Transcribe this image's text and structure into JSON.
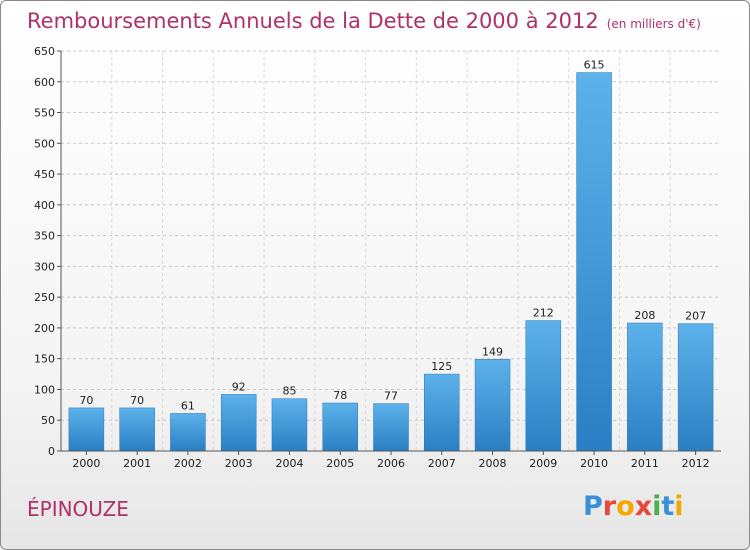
{
  "chart_data": {
    "type": "bar",
    "title": "Remboursements Annuels de la Dette de 2000 à 2012",
    "unit": "(en milliers d'€)",
    "categories": [
      "2000",
      "2001",
      "2002",
      "2003",
      "2004",
      "2005",
      "2006",
      "2007",
      "2008",
      "2009",
      "2010",
      "2011",
      "2012"
    ],
    "values": [
      70,
      70,
      61,
      92,
      85,
      78,
      77,
      125,
      149,
      212,
      615,
      208,
      207
    ],
    "ylim": [
      0,
      650
    ],
    "yticks": [
      0,
      50,
      100,
      150,
      200,
      250,
      300,
      350,
      400,
      450,
      500,
      550,
      600,
      650
    ],
    "grid": true,
    "bar_color": "#4aa3e0"
  },
  "commune": "ÉPINOUZE",
  "logo": {
    "letters": [
      "P",
      "r",
      "o",
      "x",
      "i",
      "t",
      "i"
    ],
    "colors": [
      "#3a8fd6",
      "#e8473c",
      "#f2a800",
      "#e8473c",
      "#4caf50",
      "#3a8fd6",
      "#f2a800"
    ]
  }
}
